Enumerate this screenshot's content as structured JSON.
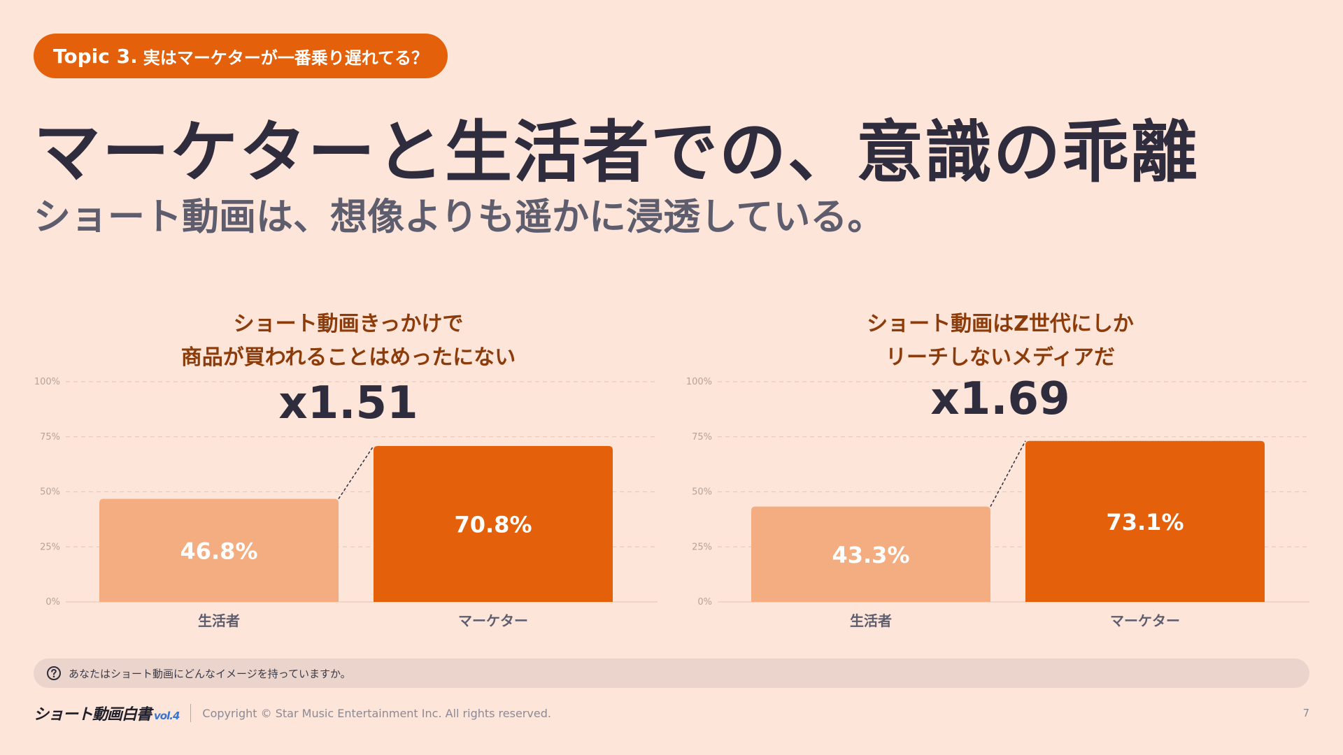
{
  "topic": {
    "label": "Topic 3.",
    "text": "実はマーケターが一番乗り遅れてる？"
  },
  "title": "マーケターと生活者での、意識の乖離",
  "subtitle": "ショート動画は、想像よりも遥かに浸透している。",
  "colors": {
    "accent": "#e4600b",
    "light_bar": "#f4ad80",
    "background": "#fde5da",
    "title_text": "#2e2c3d"
  },
  "chart_data": [
    {
      "type": "bar",
      "title_lines": [
        "ショート動画きっかけで",
        "商品が買われることはめったにない"
      ],
      "multiplier": "x1.51",
      "categories": [
        "生活者",
        "マーケター"
      ],
      "values": [
        46.8,
        70.8
      ],
      "value_labels": [
        "46.8%",
        "70.8%"
      ],
      "ylim": [
        0,
        100
      ],
      "yticks": [
        0,
        25,
        50,
        75,
        100
      ],
      "ytick_labels": [
        "0%",
        "25%",
        "50%",
        "75%",
        "100%"
      ]
    },
    {
      "type": "bar",
      "title_lines": [
        "ショート動画はZ世代にしか",
        "リーチしないメディアだ"
      ],
      "multiplier": "x1.69",
      "categories": [
        "生活者",
        "マーケター"
      ],
      "values": [
        43.3,
        73.1
      ],
      "value_labels": [
        "43.3%",
        "73.1%"
      ],
      "ylim": [
        0,
        100
      ],
      "yticks": [
        0,
        25,
        50,
        75,
        100
      ],
      "ytick_labels": [
        "0%",
        "25%",
        "50%",
        "75%",
        "100%"
      ]
    }
  ],
  "question": {
    "icon": "question-circle-icon",
    "text": "あなたはショート動画にどんなイメージを持っていますか。"
  },
  "footer": {
    "logo": "ショート動画白書",
    "logo_vol": "vol.4",
    "copyright": "Copyright © Star Music Entertainment Inc. All rights reserved.",
    "page": "7"
  }
}
